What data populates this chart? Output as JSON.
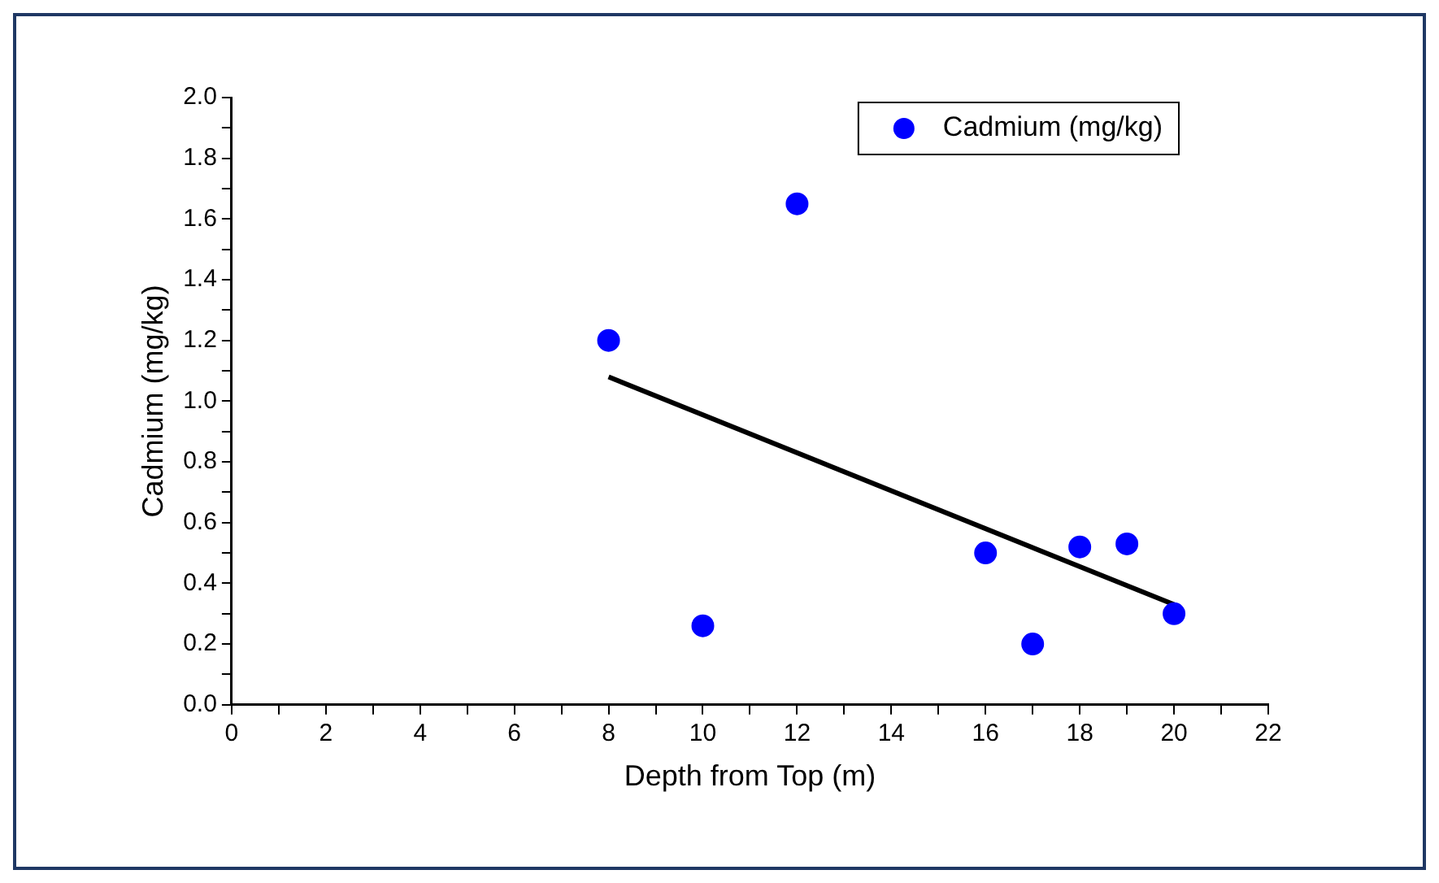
{
  "chart_data": {
    "type": "scatter",
    "xlabel": "Depth from Top (m)",
    "ylabel": "Cadmium (mg/kg)",
    "series": [
      {
        "name": "Cadmium (mg/kg)",
        "color": "#0000ff",
        "type": "scatter",
        "marker": "circle",
        "x": [
          8,
          10,
          12,
          16,
          17,
          18,
          19,
          20
        ],
        "values": [
          1.2,
          0.26,
          1.65,
          0.5,
          0.2,
          0.52,
          0.53,
          0.3
        ]
      },
      {
        "color": "#000000",
        "type": "line",
        "marker": "none",
        "x": [
          8,
          20
        ],
        "values": [
          1.08,
          0.33
        ]
      }
    ],
    "xlim": [
      0,
      22
    ],
    "ylim": [
      0,
      2.0
    ],
    "xticks": [
      0,
      {
        "value": 1,
        "label": null
      },
      2,
      {
        "value": 3,
        "label": null
      },
      4,
      {
        "value": 5,
        "label": null
      },
      6,
      {
        "value": 7,
        "label": null
      },
      8,
      {
        "value": 9,
        "label": null
      },
      10,
      {
        "value": 11,
        "label": null
      },
      12,
      {
        "value": 13,
        "label": null
      },
      14,
      {
        "value": 15,
        "label": null
      },
      16,
      {
        "value": 17,
        "label": null
      },
      18,
      {
        "value": 19,
        "label": null
      },
      20,
      {
        "value": 21,
        "label": null
      },
      22
    ],
    "yticks": [
      {
        "value": 0,
        "label": "0.0"
      },
      {
        "value": 0.1,
        "label": null
      },
      0.2,
      {
        "value": 0.3,
        "label": null
      },
      0.4,
      {
        "value": 0.5,
        "label": null
      },
      0.6,
      {
        "value": 0.7,
        "label": null
      },
      0.8,
      {
        "value": 0.9,
        "label": null
      },
      {
        "value": 1,
        "label": "1.0"
      },
      {
        "value": 1.1,
        "label": null
      },
      1.2,
      {
        "value": 1.3,
        "label": null
      },
      1.4,
      {
        "value": 1.5,
        "label": null
      },
      1.6,
      {
        "value": 1.7,
        "label": null
      },
      1.8,
      {
        "value": 1.9,
        "label": null
      },
      {
        "value": 2,
        "label": "2.0"
      }
    ],
    "grid": false,
    "legend": "top right"
  }
}
